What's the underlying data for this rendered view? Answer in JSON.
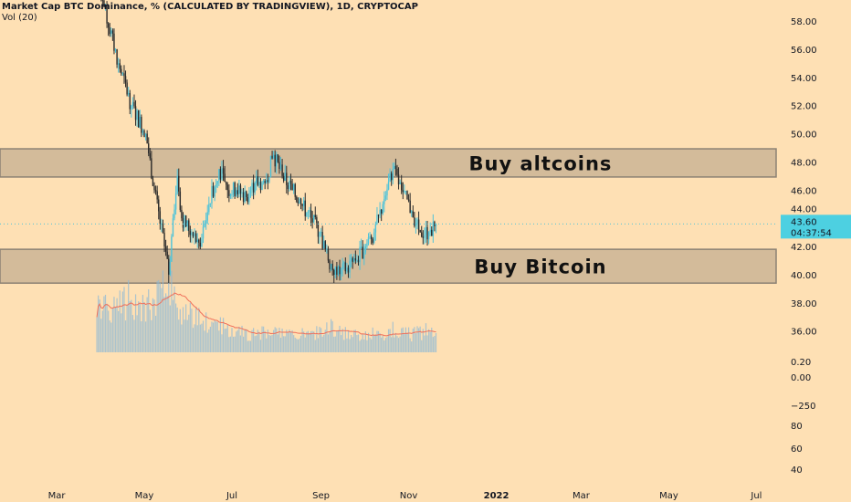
{
  "legend": {
    "title": "Market Cap BTC Dominance, % (CALCULATED BY TRADINGVIEW), 1D, CRYPTOCAP",
    "indicator": "Vol (20)"
  },
  "colors": {
    "background": "#fee0b4",
    "up_candle": "#4fc3d9",
    "down_candle": "#2b2b2b",
    "zone_fill": "#d3bb9a",
    "zone_border": "#8c8274",
    "volume_ma": "#ef6f5a",
    "volume_bar": "#8fb9d6",
    "price_label_bg": "#4dd0e1"
  },
  "chart_data": {
    "type": "candlestick",
    "title": "Market Cap BTC Dominance, % (CALCULATED BY TRADINGVIEW), 1D, CRYPTOCAP",
    "ylim": [
      37,
      59
    ],
    "y_ticks": [
      "58.00",
      "56.00",
      "54.00",
      "52.00",
      "50.00",
      "48.00",
      "46.00",
      "44.00",
      "42.00",
      "40.00",
      "38.00",
      "36.00"
    ],
    "extra_axis_labels": [
      "0.20",
      "0.00",
      "−250",
      "80",
      "60",
      "40"
    ],
    "x_ticks": [
      {
        "label": "Mar",
        "date": "2021-03-01"
      },
      {
        "label": "May",
        "date": "2021-05-01"
      },
      {
        "label": "Jul",
        "date": "2021-07-01"
      },
      {
        "label": "Sep",
        "date": "2021-09-01"
      },
      {
        "label": "Nov",
        "date": "2021-11-01"
      },
      {
        "label": "2022",
        "date": "2022-01-01",
        "bold": true
      },
      {
        "label": "Mar",
        "date": "2022-03-01"
      },
      {
        "label": "May",
        "date": "2022-05-01"
      },
      {
        "label": "Jul",
        "date": "2022-07-01"
      }
    ],
    "xlim": [
      "2021-02-10",
      "2022-07-20"
    ],
    "closes": [
      {
        "date": "2021-03-28",
        "close": 60.5,
        "volume": 70
      },
      {
        "date": "2021-04-03",
        "close": 59.0,
        "volume": 65
      },
      {
        "date": "2021-04-13",
        "close": 55.0,
        "volume": 75
      },
      {
        "date": "2021-04-22",
        "close": 52.0,
        "volume": 85
      },
      {
        "date": "2021-05-02",
        "close": 50.0,
        "volume": 70
      },
      {
        "date": "2021-05-08",
        "close": 46.0,
        "volume": 80
      },
      {
        "date": "2021-05-15",
        "close": 42.0,
        "volume": 95
      },
      {
        "date": "2021-05-18",
        "close": 40.0,
        "volume": 100
      },
      {
        "date": "2021-05-21",
        "close": 44.0,
        "volume": 90
      },
      {
        "date": "2021-05-24",
        "close": 47.0,
        "volume": 80
      },
      {
        "date": "2021-05-27",
        "close": 44.0,
        "volume": 70
      },
      {
        "date": "2021-06-03",
        "close": 43.0,
        "volume": 55
      },
      {
        "date": "2021-06-09",
        "close": 42.0,
        "volume": 50
      },
      {
        "date": "2021-06-15",
        "close": 45.0,
        "volume": 45
      },
      {
        "date": "2021-06-22",
        "close": 47.5,
        "volume": 50
      },
      {
        "date": "2021-06-28",
        "close": 46.0,
        "volume": 40
      },
      {
        "date": "2021-07-04",
        "close": 46.0,
        "volume": 35
      },
      {
        "date": "2021-07-11",
        "close": 45.5,
        "volume": 30
      },
      {
        "date": "2021-07-17",
        "close": 46.5,
        "volume": 28
      },
      {
        "date": "2021-07-24",
        "close": 46.5,
        "volume": 30
      },
      {
        "date": "2021-07-30",
        "close": 48.5,
        "volume": 35
      },
      {
        "date": "2021-08-05",
        "close": 47.0,
        "volume": 30
      },
      {
        "date": "2021-08-12",
        "close": 46.0,
        "volume": 28
      },
      {
        "date": "2021-08-18",
        "close": 45.0,
        "volume": 30
      },
      {
        "date": "2021-08-25",
        "close": 44.0,
        "volume": 28
      },
      {
        "date": "2021-08-31",
        "close": 43.0,
        "volume": 32
      },
      {
        "date": "2021-09-06",
        "close": 41.0,
        "volume": 40
      },
      {
        "date": "2021-09-12",
        "close": 40.0,
        "volume": 35
      },
      {
        "date": "2021-09-19",
        "close": 40.5,
        "volume": 30
      },
      {
        "date": "2021-09-25",
        "close": 41.0,
        "volume": 28
      },
      {
        "date": "2021-10-02",
        "close": 42.0,
        "volume": 30
      },
      {
        "date": "2021-10-08",
        "close": 43.0,
        "volume": 28
      },
      {
        "date": "2021-10-14",
        "close": 45.0,
        "volume": 30
      },
      {
        "date": "2021-10-21",
        "close": 47.5,
        "volume": 35
      },
      {
        "date": "2021-10-27",
        "close": 46.0,
        "volume": 30
      },
      {
        "date": "2021-11-03",
        "close": 44.5,
        "volume": 28
      },
      {
        "date": "2021-11-09",
        "close": 43.0,
        "volume": 30
      },
      {
        "date": "2021-11-15",
        "close": 43.0,
        "volume": 35
      },
      {
        "date": "2021-11-20",
        "close": 43.6,
        "volume": 38
      }
    ],
    "zones": [
      {
        "label": "Buy altcoins",
        "top": 48.93,
        "bottom": 46.93
      },
      {
        "label": "Buy Bitcoin",
        "top": 41.8,
        "bottom": 39.4
      }
    ],
    "last_price": {
      "value": 43.6,
      "label": "43.60",
      "countdown": "04:37:54"
    }
  }
}
